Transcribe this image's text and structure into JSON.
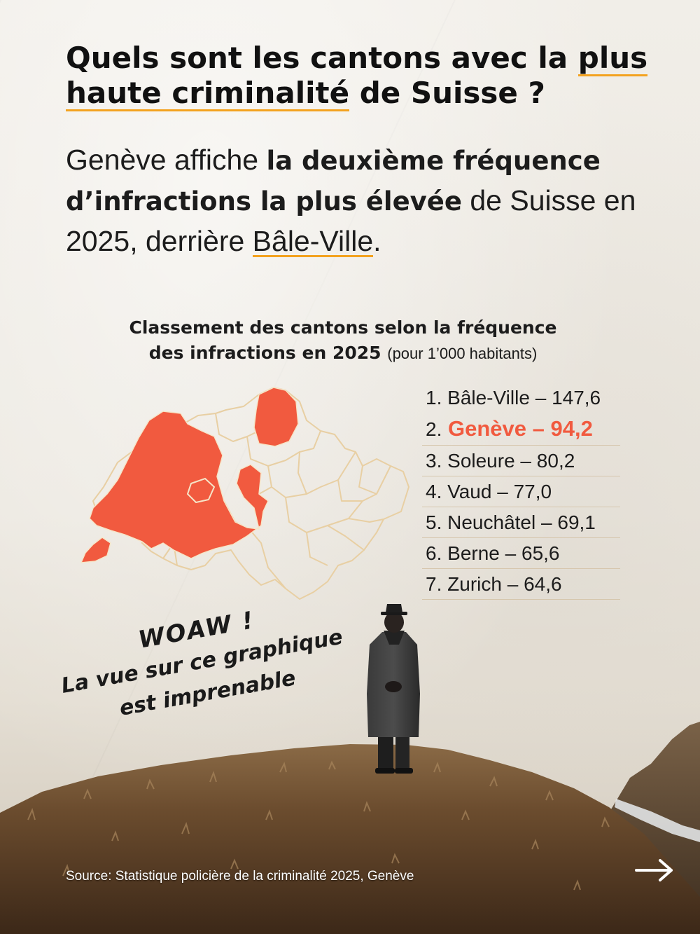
{
  "headline": {
    "part1": "Quels sont les cantons avec la ",
    "highlight": "plus haute criminalité",
    "part2": " de Suisse ?"
  },
  "subhead": {
    "t1": "Genève affiche ",
    "bold": "la deuxième fréquence d’infractions la plus élevée",
    "t2": " de Suisse en 2025, derrière ",
    "underlined": "Bâle-Ville",
    "t3": "."
  },
  "chart_title": {
    "line1": "Classement des cantons selon la fréquence",
    "line2": "des infractions en 2025",
    "note": "(pour 1’000 habitants)"
  },
  "ranking": [
    {
      "rank": "1.",
      "name": "Bâle-Ville",
      "sep": " – ",
      "value": "147,6"
    },
    {
      "rank": "2.",
      "name": "Genève",
      "sep": " – ",
      "value": "94,2"
    },
    {
      "rank": "3.",
      "name": "Soleure",
      "sep": " – ",
      "value": "80,2"
    },
    {
      "rank": "4.",
      "name": "Vaud",
      "sep": " – ",
      "value": "77,0"
    },
    {
      "rank": "5.",
      "name": "Neuchâtel",
      "sep": " – ",
      "value": "69,1"
    },
    {
      "rank": "6.",
      "name": "Berne",
      "sep": " – ",
      "value": "65,6"
    },
    {
      "rank": "7.",
      "name": "Zurich",
      "sep": " – ",
      "value": "64,6"
    }
  ],
  "annotation": {
    "line1": "WOAW !",
    "line2": "La vue sur ce graphique",
    "line3": "est imprenable"
  },
  "source": "Source: Statistique policière de la criminalité 2025, Genève",
  "colors": {
    "accent": "#f15a3f",
    "underline": "#f3a21f",
    "map_outline": "#e8cfa3",
    "text": "#1c1c1c"
  },
  "icons": {
    "next": "arrow-right-icon"
  }
}
